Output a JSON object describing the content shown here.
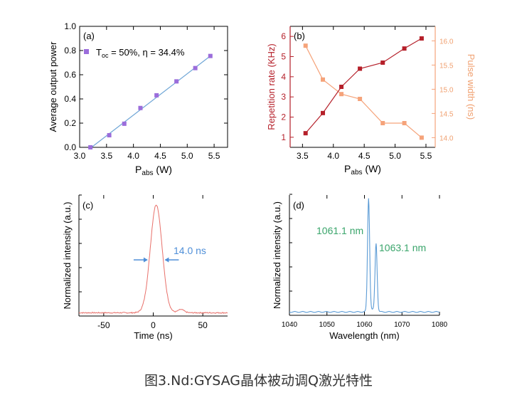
{
  "colors": {
    "a_marker": "#9b6ddb",
    "a_fit": "#6fa6d6",
    "b_left": "#b5202a",
    "b_right": "#f5a37a",
    "b_right_text": "#f0a070",
    "c_line": "#e8706a",
    "c_arrow": "#4f8fd8",
    "c_label": "#4f8fd8",
    "d_line": "#5b9bd5",
    "d_label": "#3aa56b"
  },
  "caption": "图3.Nd:GYSAG晶体被动调Q激光特性",
  "chart_data": [
    {
      "id": "a",
      "type": "scatter",
      "panel_label": "(a)",
      "xlabel_main": "P",
      "xlabel_sub": "abs",
      "xlabel_unit": " (W)",
      "ylabel": "Average output power",
      "xlim": [
        3.0,
        5.75
      ],
      "ylim": [
        0.0,
        1.0
      ],
      "xticks": [
        "3.0",
        "3.5",
        "4.0",
        "4.5",
        "5.0",
        "5.5"
      ],
      "yticks": [
        "0.0",
        "0.2",
        "0.4",
        "0.6",
        "0.8",
        "1.0"
      ],
      "legend_T": "T",
      "legend_sub": "oc",
      "legend_rest": " = 50%, η = 34.4%",
      "x": [
        3.2,
        3.55,
        3.83,
        4.13,
        4.43,
        4.8,
        5.15,
        5.43
      ],
      "y": [
        0.0,
        0.1,
        0.195,
        0.325,
        0.43,
        0.545,
        0.655,
        0.755
      ],
      "fit_line": {
        "x": [
          3.22,
          5.43
        ],
        "y": [
          0.0,
          0.755
        ]
      }
    },
    {
      "id": "b",
      "type": "line",
      "panel_label": "(b)",
      "xlabel_main": "P",
      "xlabel_sub": "abs",
      "xlabel_unit": " (W)",
      "ylabel": "Repetition rate (KHz)",
      "y2label": "Pulse width (ns)",
      "xlim": [
        3.3,
        5.65
      ],
      "ylim": [
        0.5,
        6.5
      ],
      "y2lim": [
        13.8,
        16.3
      ],
      "xticks": [
        "3.5",
        "4.0",
        "4.5",
        "5.0",
        "5.5"
      ],
      "yticks": [
        "1",
        "2",
        "3",
        "4",
        "5",
        "6"
      ],
      "y2ticks": [
        "14.0",
        "14.5",
        "15.0",
        "15.5",
        "16.0"
      ],
      "x": [
        3.55,
        3.83,
        4.13,
        4.43,
        4.8,
        5.15,
        5.43
      ],
      "series": [
        {
          "name": "Repetition rate (KHz)",
          "axis": "left",
          "values": [
            1.2,
            2.2,
            3.5,
            4.4,
            4.7,
            5.4,
            5.9
          ]
        },
        {
          "name": "Pulse width (ns)",
          "axis": "right",
          "values": [
            15.9,
            15.2,
            14.9,
            14.8,
            14.3,
            14.3,
            14.0
          ]
        }
      ]
    },
    {
      "id": "c",
      "type": "line",
      "panel_label": "(c)",
      "xlabel": "Time (ns)",
      "ylabel": "Normalized intensity (a.u.)",
      "xlim": [
        -75,
        75
      ],
      "ylim": [
        -0.02,
        1.1
      ],
      "xticks": [
        "-50",
        "0",
        "50"
      ],
      "annotation": "14.0 ns",
      "pulse": {
        "center": 3,
        "fwhm": 14.0,
        "noise": 0.01
      }
    },
    {
      "id": "d",
      "type": "line",
      "panel_label": "(d)",
      "xlabel": "Wavelength (nm)",
      "ylabel": "Normalized intensity (a.u.)",
      "xlim": [
        1040,
        1080
      ],
      "ylim": [
        -0.02,
        1.05
      ],
      "xticks": [
        "1040",
        "1050",
        "1060",
        "1070",
        "1080"
      ],
      "peaks": [
        {
          "label": "1061.1 nm",
          "x": 1061.1,
          "y": 1.0
        },
        {
          "label": "1063.1 nm",
          "x": 1063.1,
          "y": 0.6
        }
      ],
      "baseline": 0.01
    }
  ]
}
